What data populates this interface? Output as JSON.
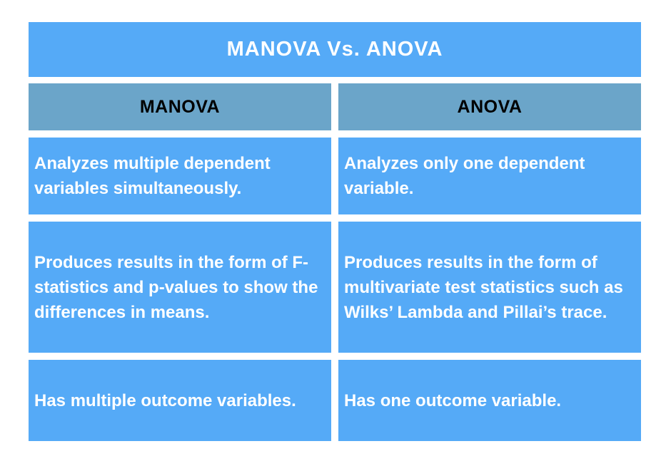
{
  "title": "MANOVA Vs. ANOVA",
  "table": {
    "headers": [
      "MANOVA",
      "ANOVA"
    ],
    "rows": [
      [
        "Analyzes multiple dependent variables simultaneously.",
        "Analyzes only one dependent variable."
      ],
      [
        "Produces results in the form of F-statistics and p-values to show the differences in means.",
        "Produces results in the form of multivariate test statistics such as Wilks’ Lambda and Pillai’s trace."
      ],
      [
        "Has multiple outcome variables.",
        "Has one outcome variable."
      ]
    ]
  },
  "colors": {
    "primary_blue": "#55aaf7",
    "header_blue": "#6ba5c9",
    "title_text": "#ffffff",
    "header_text": "#000000",
    "cell_text": "#ffffff",
    "page_background": "#ffffff"
  }
}
